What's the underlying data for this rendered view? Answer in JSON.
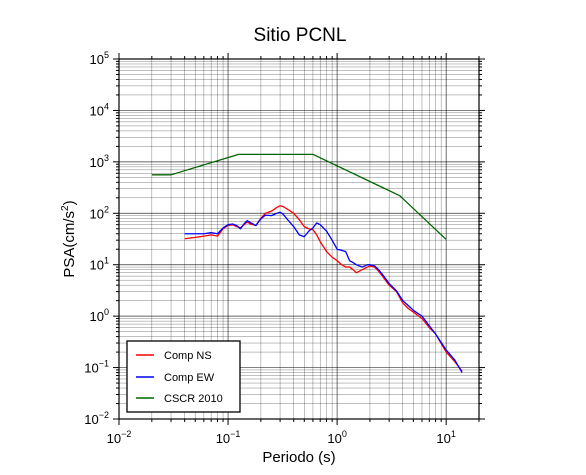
{
  "chart_data": {
    "type": "line",
    "title": "Sitio PCNL",
    "xlabel": "Periodo (s)",
    "ylabel": "PSA(cm/s²)",
    "ylabel_main": "PSA(cm/s",
    "ylabel_sup": "2",
    "ylabel_close": ")",
    "xscale": "log",
    "yscale": "log",
    "xlim": [
      0.01,
      20
    ],
    "ylim": [
      0.01,
      100000
    ],
    "grid": true,
    "legend_position": "bottom-left",
    "x_ticks": [
      {
        "value": 0.01,
        "base": "10",
        "exp": "−2"
      },
      {
        "value": 0.1,
        "base": "10",
        "exp": "−1"
      },
      {
        "value": 1,
        "base": "10",
        "exp": "0"
      },
      {
        "value": 10,
        "base": "10",
        "exp": "1"
      }
    ],
    "y_ticks": [
      {
        "value": 0.01,
        "base": "10",
        "exp": "−2"
      },
      {
        "value": 0.1,
        "base": "10",
        "exp": "−1"
      },
      {
        "value": 1,
        "base": "10",
        "exp": "0"
      },
      {
        "value": 10,
        "base": "10",
        "exp": "1"
      },
      {
        "value": 100,
        "base": "10",
        "exp": "2"
      },
      {
        "value": 1000,
        "base": "10",
        "exp": "3"
      },
      {
        "value": 10000,
        "base": "10",
        "exp": "4"
      },
      {
        "value": 100000,
        "base": "10",
        "exp": "5"
      }
    ],
    "series": [
      {
        "name": "Comp NS",
        "color": "#ff0000",
        "x": [
          0.04,
          0.05,
          0.06,
          0.07,
          0.08,
          0.09,
          0.1,
          0.11,
          0.12,
          0.13,
          0.14,
          0.15,
          0.16,
          0.18,
          0.2,
          0.22,
          0.25,
          0.28,
          0.3,
          0.32,
          0.35,
          0.4,
          0.45,
          0.5,
          0.55,
          0.6,
          0.65,
          0.7,
          0.8,
          0.9,
          1.0,
          1.1,
          1.2,
          1.3,
          1.4,
          1.5,
          1.7,
          1.9,
          2.0,
          2.2,
          2.4,
          2.6,
          3.0,
          3.5,
          4.0,
          4.5,
          5.0,
          6.0,
          7.0,
          8.0,
          10.0,
          12.0,
          14.0
        ],
        "y": [
          32,
          34,
          36,
          38,
          36,
          50,
          58,
          60,
          55,
          52,
          60,
          68,
          62,
          58,
          80,
          100,
          110,
          130,
          140,
          135,
          120,
          100,
          75,
          55,
          50,
          48,
          38,
          28,
          18,
          14,
          12,
          10,
          9,
          9,
          8,
          7,
          8,
          9,
          9.5,
          9,
          7.5,
          6,
          4,
          3,
          1.8,
          1.4,
          1.2,
          0.9,
          0.6,
          0.45,
          0.2,
          0.13,
          0.085
        ]
      },
      {
        "name": "Comp EW",
        "color": "#0000ff",
        "x": [
          0.04,
          0.05,
          0.06,
          0.07,
          0.08,
          0.09,
          0.1,
          0.11,
          0.12,
          0.13,
          0.14,
          0.15,
          0.16,
          0.18,
          0.2,
          0.22,
          0.25,
          0.28,
          0.3,
          0.32,
          0.35,
          0.4,
          0.45,
          0.5,
          0.55,
          0.6,
          0.65,
          0.7,
          0.8,
          0.9,
          1.0,
          1.1,
          1.2,
          1.3,
          1.4,
          1.5,
          1.7,
          1.9,
          2.0,
          2.2,
          2.4,
          2.6,
          3.0,
          3.5,
          4.0,
          4.5,
          5.0,
          6.0,
          7.0,
          8.0,
          10.0,
          12.0,
          14.0
        ],
        "y": [
          40,
          40,
          40,
          42,
          40,
          52,
          60,
          62,
          58,
          50,
          62,
          72,
          66,
          58,
          78,
          92,
          90,
          100,
          105,
          96,
          76,
          55,
          38,
          35,
          45,
          52,
          65,
          60,
          45,
          30,
          20,
          19,
          18,
          12,
          11,
          10,
          9,
          10,
          10,
          9.5,
          8,
          6.5,
          4.3,
          3.1,
          2,
          1.6,
          1.3,
          1.0,
          0.65,
          0.45,
          0.22,
          0.14,
          0.08
        ]
      },
      {
        "name": "CSCR 2010",
        "color": "#006400",
        "x": [
          0.02,
          0.03,
          0.125,
          0.6,
          3.75,
          10
        ],
        "y": [
          560,
          560,
          1400,
          1400,
          220,
          31
        ]
      }
    ]
  }
}
